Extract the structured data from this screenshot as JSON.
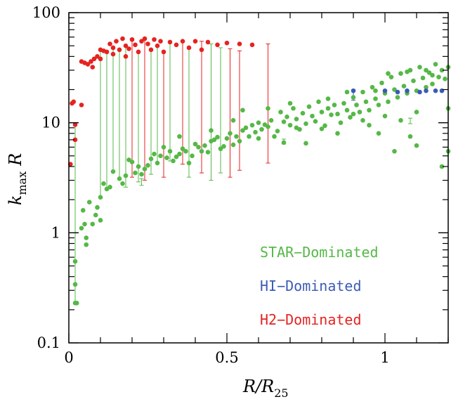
{
  "chart_data": {
    "type": "scatter",
    "x_scale": "linear",
    "y_scale": "log",
    "xlim": [
      0,
      1.2
    ],
    "ylim": [
      0.1,
      100
    ],
    "x_ticks": [
      {
        "v": 0,
        "label": "0"
      },
      {
        "v": 0.5,
        "label": "0.5"
      },
      {
        "v": 1,
        "label": "1"
      }
    ],
    "y_ticks": [
      {
        "v": 0.1,
        "label": "0.1"
      },
      {
        "v": 1,
        "label": "1"
      },
      {
        "v": 10,
        "label": "10"
      },
      {
        "v": 100,
        "label": "100"
      }
    ],
    "xlabel": {
      "main": "R/R",
      "sub": "25"
    },
    "ylabel": {
      "main": "k",
      "sub": "max",
      "tail": "R"
    },
    "legend_position": "lower-right",
    "series": [
      {
        "name": "STAR−Dominated",
        "color": "#55b847",
        "points": [
          [
            0.02,
            0.23
          ],
          [
            0.025,
            0.23
          ],
          [
            0.02,
            0.34
          ],
          [
            0.02,
            0.55
          ],
          [
            0.04,
            1.1
          ],
          [
            0.05,
            1.2
          ],
          [
            0.055,
            0.78
          ],
          [
            0.055,
            0.9
          ],
          [
            0.045,
            1.6
          ],
          [
            0.065,
            1.9
          ],
          [
            0.075,
            1.2
          ],
          [
            0.085,
            1.45
          ],
          [
            0.1,
            1.3
          ],
          [
            0.09,
            1.7
          ],
          [
            0.1,
            2.1
          ],
          [
            0.11,
            2.8
          ],
          [
            0.12,
            2.5
          ],
          [
            0.13,
            2.6
          ],
          [
            0.14,
            3.6
          ],
          [
            0.16,
            3.1
          ],
          [
            0.17,
            2.8
          ],
          [
            0.18,
            3.3
          ],
          [
            0.19,
            4.6
          ],
          [
            0.2,
            4.4
          ],
          [
            0.21,
            3.5
          ],
          [
            0.22,
            4.0
          ],
          [
            0.23,
            3.4
          ],
          [
            0.24,
            3.8
          ],
          [
            0.25,
            4.1
          ],
          [
            0.26,
            4.7
          ],
          [
            0.27,
            5.2
          ],
          [
            0.28,
            4.3
          ],
          [
            0.29,
            5.0
          ],
          [
            0.3,
            6.0
          ],
          [
            0.31,
            4.8
          ],
          [
            0.32,
            5.5
          ],
          [
            0.33,
            4.5
          ],
          [
            0.34,
            4.9
          ],
          [
            0.35,
            5.2
          ],
          [
            0.36,
            5.8
          ],
          [
            0.37,
            5.5
          ],
          [
            0.38,
            4.3
          ],
          [
            0.39,
            5.0
          ],
          [
            0.4,
            6.4
          ],
          [
            0.41,
            6.0
          ],
          [
            0.42,
            5.5
          ],
          [
            0.43,
            6.2
          ],
          [
            0.44,
            5.4
          ],
          [
            0.45,
            6.8
          ],
          [
            0.46,
            7.0
          ],
          [
            0.47,
            7.4
          ],
          [
            0.48,
            5.8
          ],
          [
            0.49,
            6.1
          ],
          [
            0.5,
            7.2
          ],
          [
            0.51,
            8.0
          ],
          [
            0.52,
            6.3
          ],
          [
            0.53,
            7.5
          ],
          [
            0.54,
            6.8
          ],
          [
            0.55,
            8.5
          ],
          [
            0.56,
            9.0
          ],
          [
            0.57,
            7.5
          ],
          [
            0.58,
            9.5
          ],
          [
            0.59,
            8.2
          ],
          [
            0.6,
            10.0
          ],
          [
            0.61,
            8.7
          ],
          [
            0.62,
            9.6
          ],
          [
            0.63,
            9.2
          ],
          [
            0.64,
            10.5
          ],
          [
            0.65,
            7.5
          ],
          [
            0.66,
            8.4
          ],
          [
            0.67,
            12.5
          ],
          [
            0.68,
            10.2
          ],
          [
            0.69,
            11.3
          ],
          [
            0.7,
            9.5
          ],
          [
            0.71,
            13.5
          ],
          [
            0.72,
            10.8
          ],
          [
            0.73,
            8.7
          ],
          [
            0.74,
            12.2
          ],
          [
            0.75,
            9.8
          ],
          [
            0.76,
            14.0
          ],
          [
            0.77,
            11.5
          ],
          [
            0.78,
            10.3
          ],
          [
            0.79,
            15.5
          ],
          [
            0.8,
            12.5
          ],
          [
            0.81,
            9.4
          ],
          [
            0.82,
            13.5
          ],
          [
            0.83,
            11.8
          ],
          [
            0.84,
            14.5
          ],
          [
            0.85,
            12.0
          ],
          [
            0.86,
            10.0
          ],
          [
            0.87,
            15.0
          ],
          [
            0.88,
            13.0
          ],
          [
            0.89,
            11.2
          ],
          [
            0.9,
            17.0
          ],
          [
            0.91,
            14.5
          ],
          [
            0.92,
            12.5
          ],
          [
            0.93,
            19.0
          ],
          [
            0.94,
            15.5
          ],
          [
            0.95,
            13.0
          ],
          [
            0.96,
            21.0
          ],
          [
            0.97,
            16.5
          ],
          [
            0.98,
            14.5
          ],
          [
            0.99,
            23.0
          ],
          [
            1.0,
            18.5
          ],
          [
            1.01,
            15.5
          ],
          [
            1.02,
            26.0
          ],
          [
            1.03,
            20.0
          ],
          [
            1.04,
            17.0
          ],
          [
            1.05,
            28.0
          ],
          [
            1.06,
            21.5
          ],
          [
            1.07,
            18.5
          ],
          [
            1.08,
            30.0
          ],
          [
            1.09,
            24.0
          ],
          [
            1.1,
            19.5
          ],
          [
            1.11,
            32.0
          ],
          [
            1.12,
            25.5
          ],
          [
            1.13,
            21.0
          ],
          [
            1.14,
            28.5
          ],
          [
            1.15,
            22.5
          ],
          [
            1.16,
            34.0
          ],
          [
            1.17,
            26.0
          ],
          [
            1.18,
            30.0
          ],
          [
            1.19,
            25.0
          ],
          [
            1.2,
            32.0
          ],
          [
            0.35,
            7.5
          ],
          [
            0.45,
            8.5
          ],
          [
            0.52,
            10.5
          ],
          [
            0.6,
            7.2
          ],
          [
            0.7,
            15.0
          ],
          [
            0.8,
            8.8
          ],
          [
            0.9,
            12.0
          ],
          [
            1.0,
            11.5
          ],
          [
            1.05,
            10.5
          ],
          [
            1.1,
            12.5
          ],
          [
            1.2,
            13.5
          ],
          [
            0.55,
            13.0
          ],
          [
            0.63,
            13.5
          ],
          [
            0.68,
            6.6
          ],
          [
            0.75,
            6.5
          ],
          [
            0.85,
            8.0
          ],
          [
            0.95,
            9.5
          ],
          [
            0.98,
            8.0
          ],
          [
            1.03,
            5.5
          ],
          [
            1.08,
            7.5
          ],
          [
            1.1,
            6.2
          ],
          [
            1.18,
            4.0
          ],
          [
            1.2,
            5.5
          ],
          [
            0.72,
            9.0
          ],
          [
            0.82,
            16.5
          ],
          [
            0.88,
            19.0
          ],
          [
            0.93,
            10.5
          ],
          [
            0.97,
            19.5
          ],
          [
            1.01,
            28.0
          ],
          [
            1.07,
            29.0
          ],
          [
            1.13,
            30.0
          ],
          [
            1.15,
            27.0
          ]
        ]
      },
      {
        "name": "HI−Dominated",
        "color": "#3c5bb5",
        "points": [
          [
            0.9,
            19.5
          ],
          [
            1.0,
            19.5
          ],
          [
            1.04,
            19.0
          ],
          [
            1.07,
            19.5
          ],
          [
            1.11,
            19.0
          ],
          [
            1.13,
            19.5
          ],
          [
            1.16,
            19.5
          ],
          [
            1.18,
            19.5
          ]
        ]
      },
      {
        "name": "H2−Dominated",
        "color": "#e52320",
        "points": [
          [
            0.005,
            4.2
          ],
          [
            0.01,
            15.0
          ],
          [
            0.015,
            15.5
          ],
          [
            0.02,
            9.6
          ],
          [
            0.02,
            7.0
          ],
          [
            0.04,
            14.5
          ],
          [
            0.04,
            36.0
          ],
          [
            0.05,
            35.0
          ],
          [
            0.06,
            34.0
          ],
          [
            0.07,
            36.0
          ],
          [
            0.075,
            32.0
          ],
          [
            0.08,
            38.0
          ],
          [
            0.09,
            40.0
          ],
          [
            0.1,
            46.0
          ],
          [
            0.11,
            45.0
          ],
          [
            0.12,
            44.0
          ],
          [
            0.13,
            52.0
          ],
          [
            0.14,
            48.0
          ],
          [
            0.15,
            55.0
          ],
          [
            0.16,
            46.0
          ],
          [
            0.17,
            58.0
          ],
          [
            0.18,
            50.0
          ],
          [
            0.19,
            47.0
          ],
          [
            0.2,
            57.0
          ],
          [
            0.21,
            51.0
          ],
          [
            0.22,
            44.0
          ],
          [
            0.23,
            55.0
          ],
          [
            0.24,
            58.0
          ],
          [
            0.25,
            52.0
          ],
          [
            0.26,
            46.0
          ],
          [
            0.27,
            57.0
          ],
          [
            0.28,
            50.0
          ],
          [
            0.29,
            55.0
          ],
          [
            0.3,
            44.0
          ],
          [
            0.32,
            54.0
          ],
          [
            0.34,
            51.0
          ],
          [
            0.36,
            55.0
          ],
          [
            0.38,
            48.0
          ],
          [
            0.4,
            55.0
          ],
          [
            0.42,
            46.0
          ],
          [
            0.44,
            54.0
          ],
          [
            0.47,
            51.0
          ],
          [
            0.5,
            53.0
          ],
          [
            0.54,
            52.0
          ],
          [
            0.58,
            51.0
          ],
          [
            0.1,
            38.0
          ],
          [
            0.14,
            42.0
          ],
          [
            0.18,
            40.0
          ]
        ]
      }
    ],
    "error_bars": [
      {
        "x": 0.02,
        "lo": 0.23,
        "hi": 9.6,
        "color": "#55b847"
      },
      {
        "x": 0.1,
        "lo": 2.1,
        "hi": 46,
        "color": "#55b847"
      },
      {
        "x": 0.12,
        "lo": 2.5,
        "hi": 44,
        "color": "#55b847"
      },
      {
        "x": 0.14,
        "lo": 3.6,
        "hi": 48,
        "color": "#55b847"
      },
      {
        "x": 0.16,
        "lo": 3.1,
        "hi": 46,
        "color": "#55b847"
      },
      {
        "x": 0.18,
        "lo": 2.6,
        "hi": 50,
        "color": "#55b847"
      },
      {
        "x": 0.2,
        "lo": 3.2,
        "hi": 57,
        "color": "#e52320"
      },
      {
        "x": 0.22,
        "lo": 2.9,
        "hi": 44,
        "color": "#55b847"
      },
      {
        "x": 0.24,
        "lo": 3.0,
        "hi": 58,
        "color": "#e52320"
      },
      {
        "x": 0.26,
        "lo": 3.4,
        "hi": 46,
        "color": "#55b847"
      },
      {
        "x": 0.28,
        "lo": 4.3,
        "hi": 50,
        "color": "#55b847"
      },
      {
        "x": 0.3,
        "lo": 3.2,
        "hi": 44,
        "color": "#e52320"
      },
      {
        "x": 0.32,
        "lo": 4.5,
        "hi": 54,
        "color": "#55b847"
      },
      {
        "x": 0.36,
        "lo": 4.2,
        "hi": 55,
        "color": "#e52320"
      },
      {
        "x": 0.38,
        "lo": 3.2,
        "hi": 48,
        "color": "#55b847"
      },
      {
        "x": 0.42,
        "lo": 3.5,
        "hi": 55,
        "color": "#e52320"
      },
      {
        "x": 0.45,
        "lo": 3.0,
        "hi": 52,
        "color": "#55b847"
      },
      {
        "x": 0.48,
        "lo": 3.5,
        "hi": 48,
        "color": "#55b847"
      },
      {
        "x": 0.51,
        "lo": 3.2,
        "hi": 47,
        "color": "#e52320"
      },
      {
        "x": 0.54,
        "lo": 3.7,
        "hi": 45,
        "color": "#e52320"
      },
      {
        "x": 0.63,
        "lo": 4.3,
        "hi": 52,
        "color": "#e52320"
      },
      {
        "x": 0.9,
        "lo": 16,
        "hi": 20,
        "color": "#3c5bb5"
      },
      {
        "x": 1.08,
        "lo": 9.8,
        "hi": 11,
        "color": "#55b847"
      },
      {
        "x": 0.23,
        "lo": 2.7,
        "hi": 3.1,
        "color": "#55b847"
      },
      {
        "x": 0.68,
        "lo": 6.4,
        "hi": 7.1,
        "color": "#55b847"
      }
    ],
    "legend": [
      {
        "label": "STAR−Dominated",
        "color": "#55b847"
      },
      {
        "label": "HI−Dominated",
        "color": "#3c5bb5"
      },
      {
        "label": "H2−Dominated",
        "color": "#e52320"
      }
    ]
  }
}
